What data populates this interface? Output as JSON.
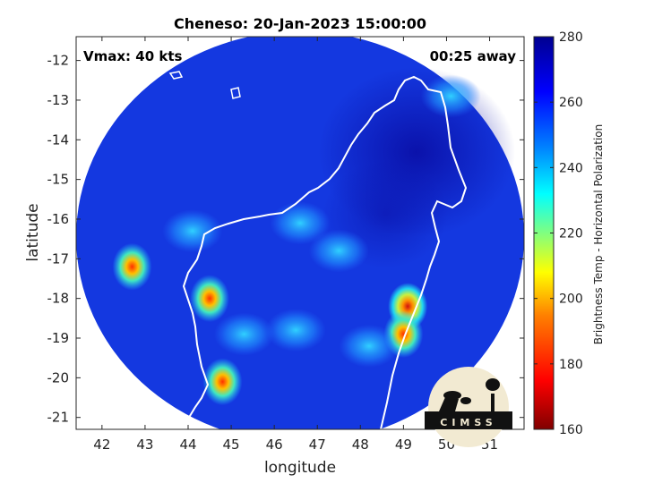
{
  "title": "Cheneso: 20-Jan-2023 15:00:00",
  "annotations": {
    "vmax": "Vmax: 40 kts",
    "time_away": "00:25 away"
  },
  "logo_text": "CIMSS",
  "chart_data": {
    "type": "heatmap",
    "title": "Cheneso: 20-Jan-2023 15:00:00",
    "xlabel": "longitude",
    "ylabel": "latitude",
    "xlim": [
      41.4,
      51.8
    ],
    "ylim": [
      -21.3,
      -11.4
    ],
    "xticks": [
      "42",
      "43",
      "44",
      "45",
      "46",
      "47",
      "48",
      "49",
      "50",
      "51"
    ],
    "xtick_values": [
      42,
      43,
      44,
      45,
      46,
      47,
      48,
      49,
      50,
      51
    ],
    "yticks": [
      "-12",
      "-13",
      "-14",
      "-15",
      "-16",
      "-17",
      "-18",
      "-19",
      "-20",
      "-21"
    ],
    "ytick_values": [
      -12,
      -13,
      -14,
      -15,
      -16,
      -17,
      -18,
      -19,
      -20,
      -21
    ],
    "colorbar": {
      "label": "Brightness Temp - Horizontal Polarization",
      "min": 160,
      "max": 280,
      "ticks": [
        "280",
        "260",
        "240",
        "220",
        "200",
        "180",
        "160"
      ],
      "tick_values": [
        280,
        260,
        240,
        220,
        200,
        180,
        160
      ],
      "colormap": [
        "#800000",
        "#ff0000",
        "#ff8000",
        "#ffff00",
        "#80ff80",
        "#00ffff",
        "#0080ff",
        "#0000ff",
        "#000090"
      ]
    },
    "swath_center": {
      "lon": 46.6,
      "lat": -16.6
    },
    "background_temperature": 262,
    "cold_features": [
      {
        "lon": 42.7,
        "lat": -17.2,
        "min_temp": 200
      },
      {
        "lon": 44.5,
        "lat": -18.0,
        "min_temp": 205
      },
      {
        "lon": 44.8,
        "lat": -20.1,
        "min_temp": 205
      },
      {
        "lon": 49.1,
        "lat": -18.2,
        "min_temp": 190
      },
      {
        "lon": 49.0,
        "lat": -18.9,
        "min_temp": 200
      },
      {
        "lon": 44.1,
        "lat": -16.3,
        "min_temp": 240
      },
      {
        "lon": 45.3,
        "lat": -18.9,
        "min_temp": 238
      },
      {
        "lon": 46.5,
        "lat": -18.8,
        "min_temp": 240
      },
      {
        "lon": 48.2,
        "lat": -19.2,
        "min_temp": 240
      },
      {
        "lon": 50.1,
        "lat": -12.9,
        "min_temp": 242
      },
      {
        "lon": 47.5,
        "lat": -16.8,
        "min_temp": 244
      },
      {
        "lon": 46.6,
        "lat": -16.1,
        "min_temp": 246
      }
    ],
    "warm_region": {
      "lon": 49.6,
      "lat": -14.3,
      "max_temp": 278
    }
  }
}
